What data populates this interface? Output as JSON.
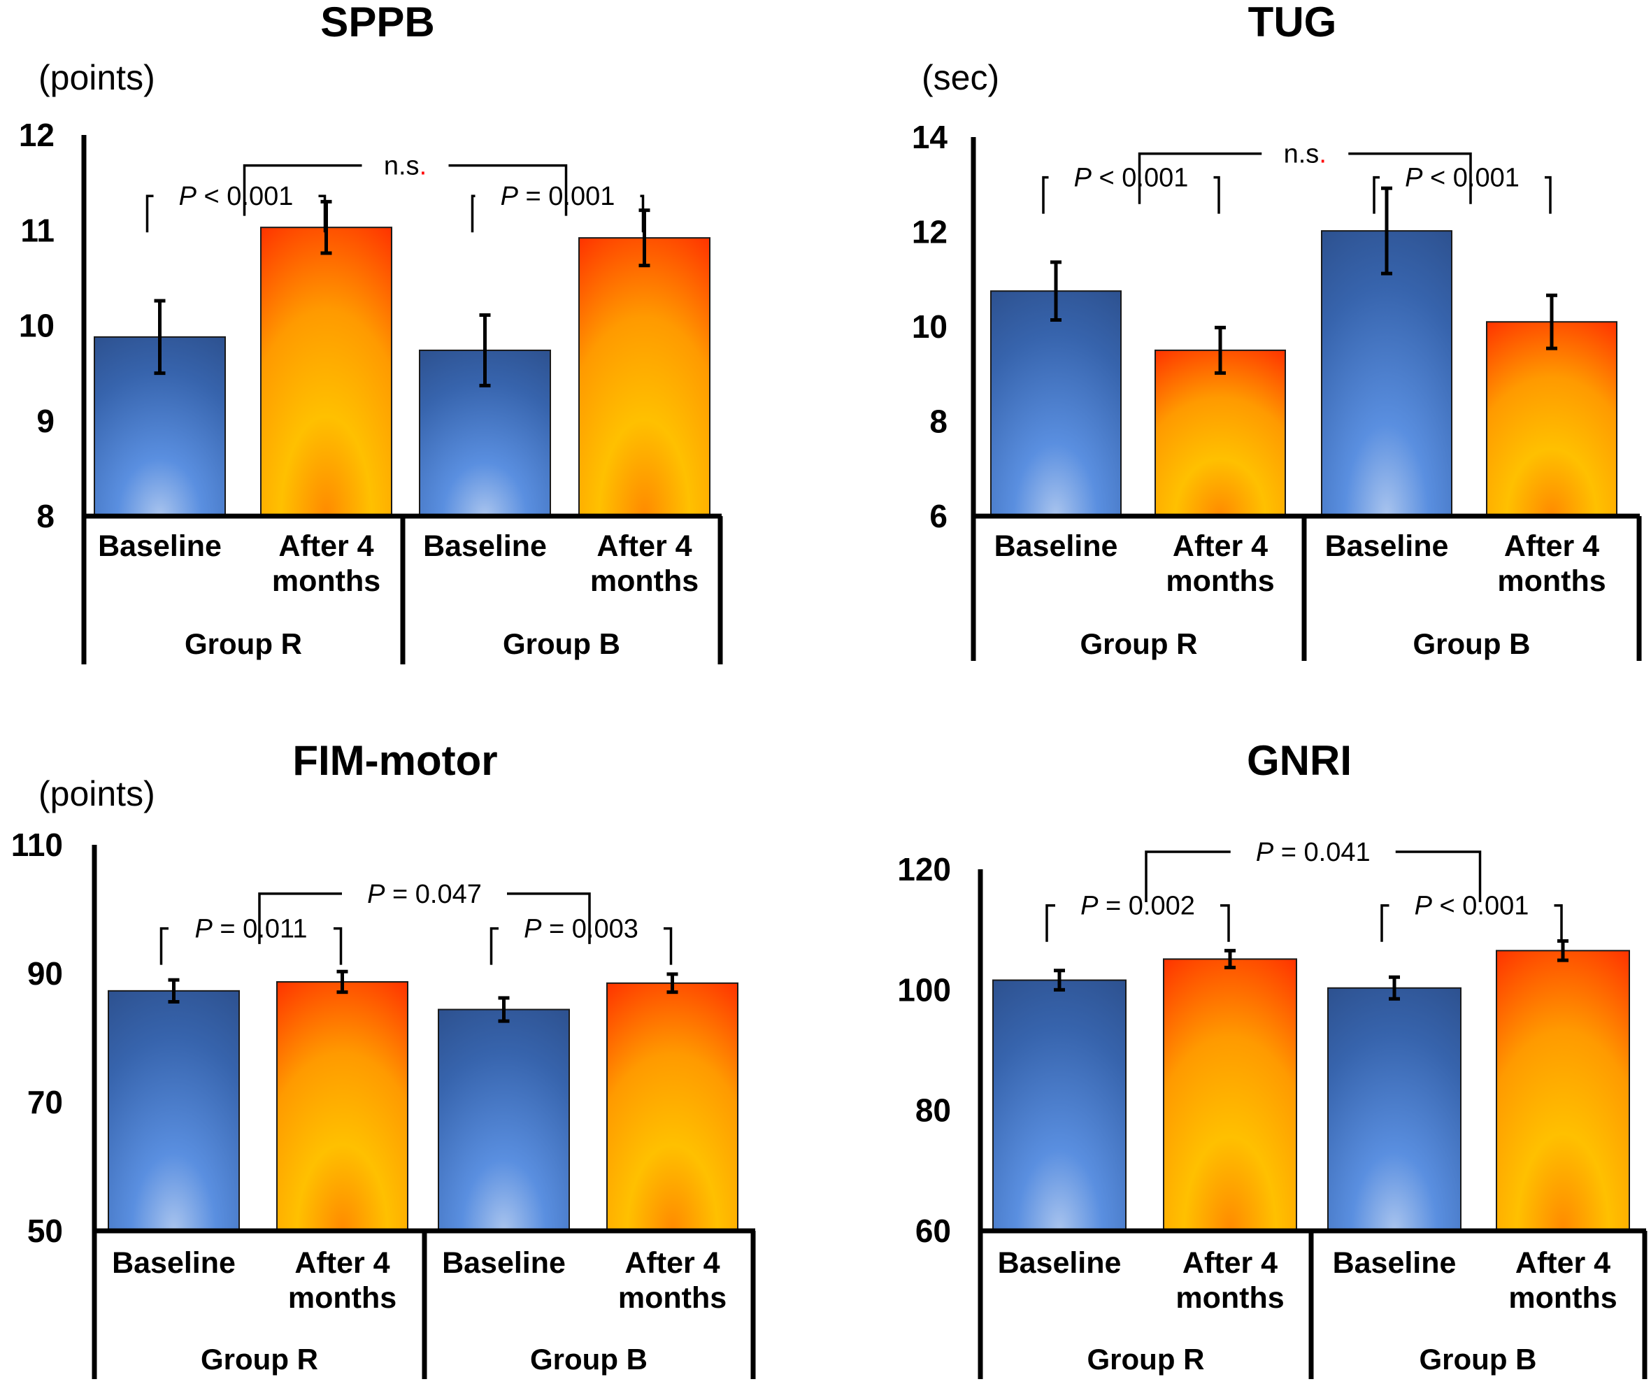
{
  "colors": {
    "blue_top": "#2c4f8c",
    "blue_bottom": "#5a8fe0",
    "orange_top": "#ff2a00",
    "orange_mid": "#ffc000",
    "red_dot": "#ff0000"
  },
  "chart_data": [
    {
      "type": "bar",
      "title": "SPPB",
      "ylabel": "(points)",
      "ylim": [
        8,
        12
      ],
      "yticks": [
        "8",
        "9",
        "10",
        "11",
        "12"
      ],
      "categories": [
        "Baseline",
        "After 4 months",
        "Baseline",
        "After 4 months"
      ],
      "category_lines": [
        [
          "Baseline"
        ],
        [
          "After 4",
          "months"
        ],
        [
          "Baseline"
        ],
        [
          "After 4",
          "months"
        ]
      ],
      "groups": [
        "Group R",
        "Group B"
      ],
      "values": [
        9.88,
        11.03,
        9.74,
        10.92
      ],
      "errors": [
        0.38,
        0.27,
        0.37,
        0.29
      ],
      "annotations": [
        {
          "text": "P < 0.001",
          "between": [
            0,
            1
          ],
          "level": 11.36
        },
        {
          "text": "P = 0.001",
          "between": [
            2,
            3
          ],
          "level": 11.36
        },
        {
          "text": "n.s.",
          "between": [
            "group0",
            "group1"
          ],
          "level": 11.68
        }
      ]
    },
    {
      "type": "bar",
      "title": "TUG",
      "ylabel": "(sec)",
      "ylim": [
        6,
        14
      ],
      "yticks": [
        "6",
        "8",
        "10",
        "12",
        "14"
      ],
      "categories": [
        "Baseline",
        "After 4 months",
        "Baseline",
        "After 4 months"
      ],
      "category_lines": [
        [
          "Baseline"
        ],
        [
          "After 4",
          "months"
        ],
        [
          "Baseline"
        ],
        [
          "After 4",
          "months"
        ]
      ],
      "groups": [
        "Group R",
        "Group B"
      ],
      "values": [
        10.75,
        9.5,
        12.02,
        10.1
      ],
      "errors": [
        0.61,
        0.48,
        0.9,
        0.56
      ],
      "annotations": [
        {
          "text": "P < 0.001",
          "between": [
            0,
            1
          ],
          "level": 13.15
        },
        {
          "text": "P < 0.001",
          "between": [
            2,
            3
          ],
          "level": 13.15
        },
        {
          "text": "n.s.",
          "between": [
            "group0",
            "group1"
          ],
          "level": 13.65
        }
      ]
    },
    {
      "type": "bar",
      "title": "FIM-motor",
      "ylabel": "(points)",
      "ylim": [
        50,
        110
      ],
      "yticks": [
        "50",
        "70",
        "90",
        "110"
      ],
      "categories": [
        "Baseline",
        "After 4 months",
        "Baseline",
        "After 4 months"
      ],
      "category_lines": [
        [
          "Baseline"
        ],
        [
          "After 4",
          "months"
        ],
        [
          "Baseline"
        ],
        [
          "After 4",
          "months"
        ]
      ],
      "groups": [
        "Group R",
        "Group B"
      ],
      "values": [
        87.3,
        88.7,
        84.4,
        88.5
      ],
      "errors": [
        1.7,
        1.6,
        1.8,
        1.4
      ],
      "annotations": [
        {
          "text": "P = 0.011",
          "between": [
            0,
            1
          ],
          "level": 97.0
        },
        {
          "text": "P = 0.003",
          "between": [
            2,
            3
          ],
          "level": 97.0
        },
        {
          "text": "P = 0.047",
          "between": [
            "group0",
            "group1"
          ],
          "level": 102.4
        }
      ]
    },
    {
      "type": "bar",
      "title": "GNRI",
      "ylabel": "",
      "ylim": [
        60,
        120
      ],
      "yticks": [
        "60",
        "80",
        "100",
        "120"
      ],
      "categories": [
        "Baseline",
        "After 4 months",
        "Baseline",
        "After 4 months"
      ],
      "category_lines": [
        [
          "Baseline"
        ],
        [
          "After 4",
          "months"
        ],
        [
          "Baseline"
        ],
        [
          "After 4",
          "months"
        ]
      ],
      "groups": [
        "Group R",
        "Group B"
      ],
      "values": [
        101.6,
        105.1,
        100.3,
        106.5
      ],
      "errors": [
        1.6,
        1.4,
        1.8,
        1.6
      ],
      "annotations": [
        {
          "text": "P = 0.002",
          "between": [
            0,
            1
          ],
          "level": 114.0
        },
        {
          "text": "P < 0.001",
          "between": [
            2,
            3
          ],
          "level": 114.0
        },
        {
          "text": "P = 0.041",
          "between": [
            "group0",
            "group1"
          ],
          "level": 122.9
        }
      ]
    }
  ]
}
